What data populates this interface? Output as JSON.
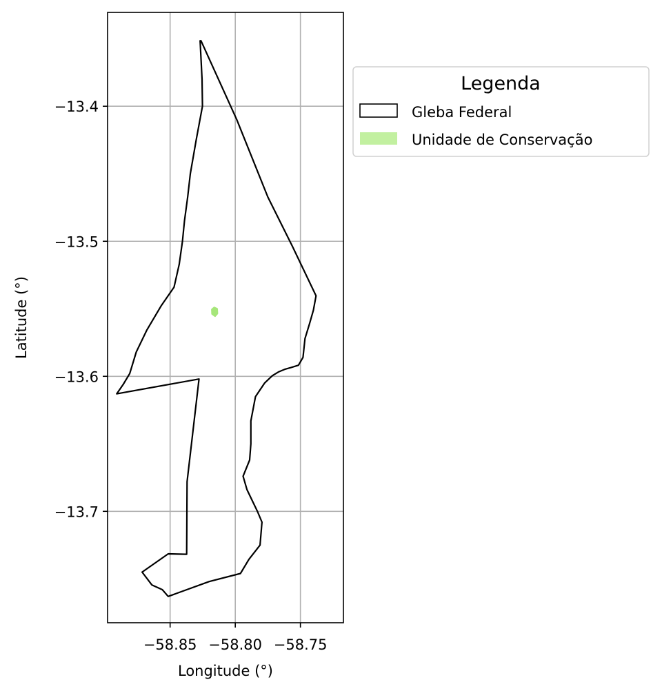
{
  "chart_data": {
    "type": "map",
    "xlabel": "Longitude (°)",
    "ylabel": "Latitude (°)",
    "xlim": [
      -58.898,
      -58.717
    ],
    "ylim": [
      -13.7825,
      -13.3305
    ],
    "xticks": [
      -58.85,
      -58.8,
      -58.75
    ],
    "xtick_labels": [
      "−58.85",
      "−58.80",
      "−58.75"
    ],
    "yticks": [
      -13.4,
      -13.5,
      -13.6,
      -13.7
    ],
    "ytick_labels": [
      "−13.4",
      "−13.5",
      "−13.6",
      "−13.7"
    ],
    "grid": true,
    "legend": {
      "title": "Legenda",
      "placement": "outside-upper-right",
      "entries": [
        {
          "label": "Gleba Federal",
          "style": "outline",
          "edge_color": "#000000",
          "fill_color": "none"
        },
        {
          "label": "Unidade de Conservação",
          "style": "fill",
          "edge_color": "#c2f0a0",
          "fill_color": "#c2f0a0"
        }
      ]
    },
    "layers": [
      {
        "name": "Gleba Federal",
        "geometry": "polygon",
        "edge_color": "#000000",
        "fill_color": "none",
        "coordinates": [
          [
            -58.8263,
            -13.3515
          ],
          [
            -58.7988,
            -13.41
          ],
          [
            -58.775,
            -13.4672
          ],
          [
            -58.756,
            -13.504
          ],
          [
            -58.738,
            -13.5404
          ],
          [
            -58.74,
            -13.551
          ],
          [
            -58.743,
            -13.561
          ],
          [
            -58.7465,
            -13.572
          ],
          [
            -58.748,
            -13.586
          ],
          [
            -58.7515,
            -13.5918
          ],
          [
            -58.7575,
            -13.5936
          ],
          [
            -58.762,
            -13.5948
          ],
          [
            -58.7665,
            -13.5966
          ],
          [
            -58.7715,
            -13.5995
          ],
          [
            -58.7775,
            -13.605
          ],
          [
            -58.7845,
            -13.615
          ],
          [
            -58.788,
            -13.633
          ],
          [
            -58.788,
            -13.65
          ],
          [
            -58.789,
            -13.662
          ],
          [
            -58.794,
            -13.674
          ],
          [
            -58.791,
            -13.684
          ],
          [
            -58.7865,
            -13.693
          ],
          [
            -58.783,
            -13.7
          ],
          [
            -58.7795,
            -13.708
          ],
          [
            -58.781,
            -13.725
          ],
          [
            -58.7895,
            -13.7355
          ],
          [
            -58.796,
            -13.746
          ],
          [
            -58.82,
            -13.752
          ],
          [
            -58.8515,
            -13.763
          ],
          [
            -58.856,
            -13.758
          ],
          [
            -58.864,
            -13.7545
          ],
          [
            -58.8715,
            -13.745
          ],
          [
            -58.8515,
            -13.7315
          ],
          [
            -58.8373,
            -13.7318
          ],
          [
            -58.837,
            -13.678
          ],
          [
            -58.8278,
            -13.602
          ],
          [
            -58.891,
            -13.613
          ],
          [
            -58.886,
            -13.606
          ],
          [
            -58.881,
            -13.598
          ],
          [
            -58.876,
            -13.582
          ],
          [
            -58.868,
            -13.566
          ],
          [
            -58.857,
            -13.548
          ],
          [
            -58.847,
            -13.534
          ],
          [
            -58.843,
            -13.517
          ],
          [
            -58.8405,
            -13.5
          ],
          [
            -58.839,
            -13.485
          ],
          [
            -58.8365,
            -13.467
          ],
          [
            -58.8345,
            -13.45
          ],
          [
            -58.83,
            -13.425
          ],
          [
            -58.8252,
            -13.4
          ],
          [
            -58.8255,
            -13.38
          ],
          [
            -58.827,
            -13.3515
          ]
        ]
      },
      {
        "name": "Unidade de Conservação",
        "geometry": "polygon",
        "edge_color": "#a6e67a",
        "fill_color": "#a6e67a",
        "coordinates": [
          [
            -58.8162,
            -13.549
          ],
          [
            -58.8139,
            -13.55
          ],
          [
            -58.8137,
            -13.5535
          ],
          [
            -58.8155,
            -13.5555
          ],
          [
            -58.8178,
            -13.5538
          ],
          [
            -58.818,
            -13.5505
          ]
        ]
      }
    ]
  }
}
